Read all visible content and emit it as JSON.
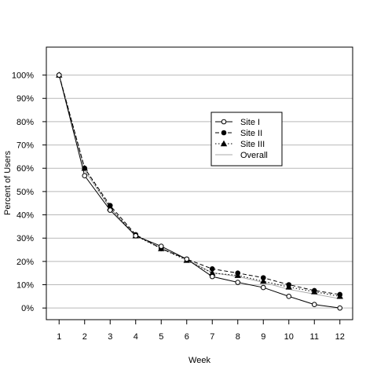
{
  "chart_data": {
    "type": "line",
    "title": "",
    "xlabel": "Week",
    "ylabel": "Percent of Users",
    "x": [
      1,
      2,
      3,
      4,
      5,
      6,
      7,
      8,
      9,
      10,
      11,
      12
    ],
    "xlim": [
      0.5,
      12.5
    ],
    "ylim": [
      -5,
      112
    ],
    "y_ticks": [
      0,
      10,
      20,
      30,
      40,
      50,
      60,
      70,
      80,
      90,
      100
    ],
    "y_tick_labels": [
      "0%",
      "10%",
      "20%",
      "30%",
      "40%",
      "50%",
      "60%",
      "70%",
      "80%",
      "90%",
      "100%"
    ],
    "x_tick_labels": [
      "1",
      "2",
      "3",
      "4",
      "5",
      "6",
      "7",
      "8",
      "9",
      "10",
      "11",
      "12"
    ],
    "grid": "horizontal",
    "legend_position": "center-right",
    "series": [
      {
        "name": "Site I",
        "values": [
          100,
          56.8,
          42.0,
          31.0,
          26.5,
          21.0,
          13.5,
          11.0,
          8.8,
          5.0,
          1.5,
          0.0
        ],
        "line_style": "solid",
        "marker": "open-circle",
        "color": "#000000"
      },
      {
        "name": "Site II",
        "values": [
          100,
          60.0,
          44.0,
          31.5,
          25.5,
          21.0,
          16.8,
          15.0,
          13.0,
          10.0,
          7.5,
          5.8
        ],
        "line_style": "dashed",
        "marker": "filled-circle",
        "color": "#000000"
      },
      {
        "name": "Site III",
        "values": [
          100,
          60.0,
          43.0,
          31.0,
          25.5,
          20.5,
          15.0,
          14.0,
          11.5,
          9.0,
          7.0,
          5.0
        ],
        "line_style": "dotted",
        "marker": "filled-triangle",
        "color": "#000000"
      },
      {
        "name": "Overall",
        "values": [
          100,
          59.0,
          43.0,
          31.0,
          25.8,
          20.8,
          15.2,
          13.5,
          11.0,
          8.0,
          6.0,
          4.0
        ],
        "line_style": "solid",
        "marker": "none",
        "color": "#aaaaaa"
      }
    ]
  }
}
